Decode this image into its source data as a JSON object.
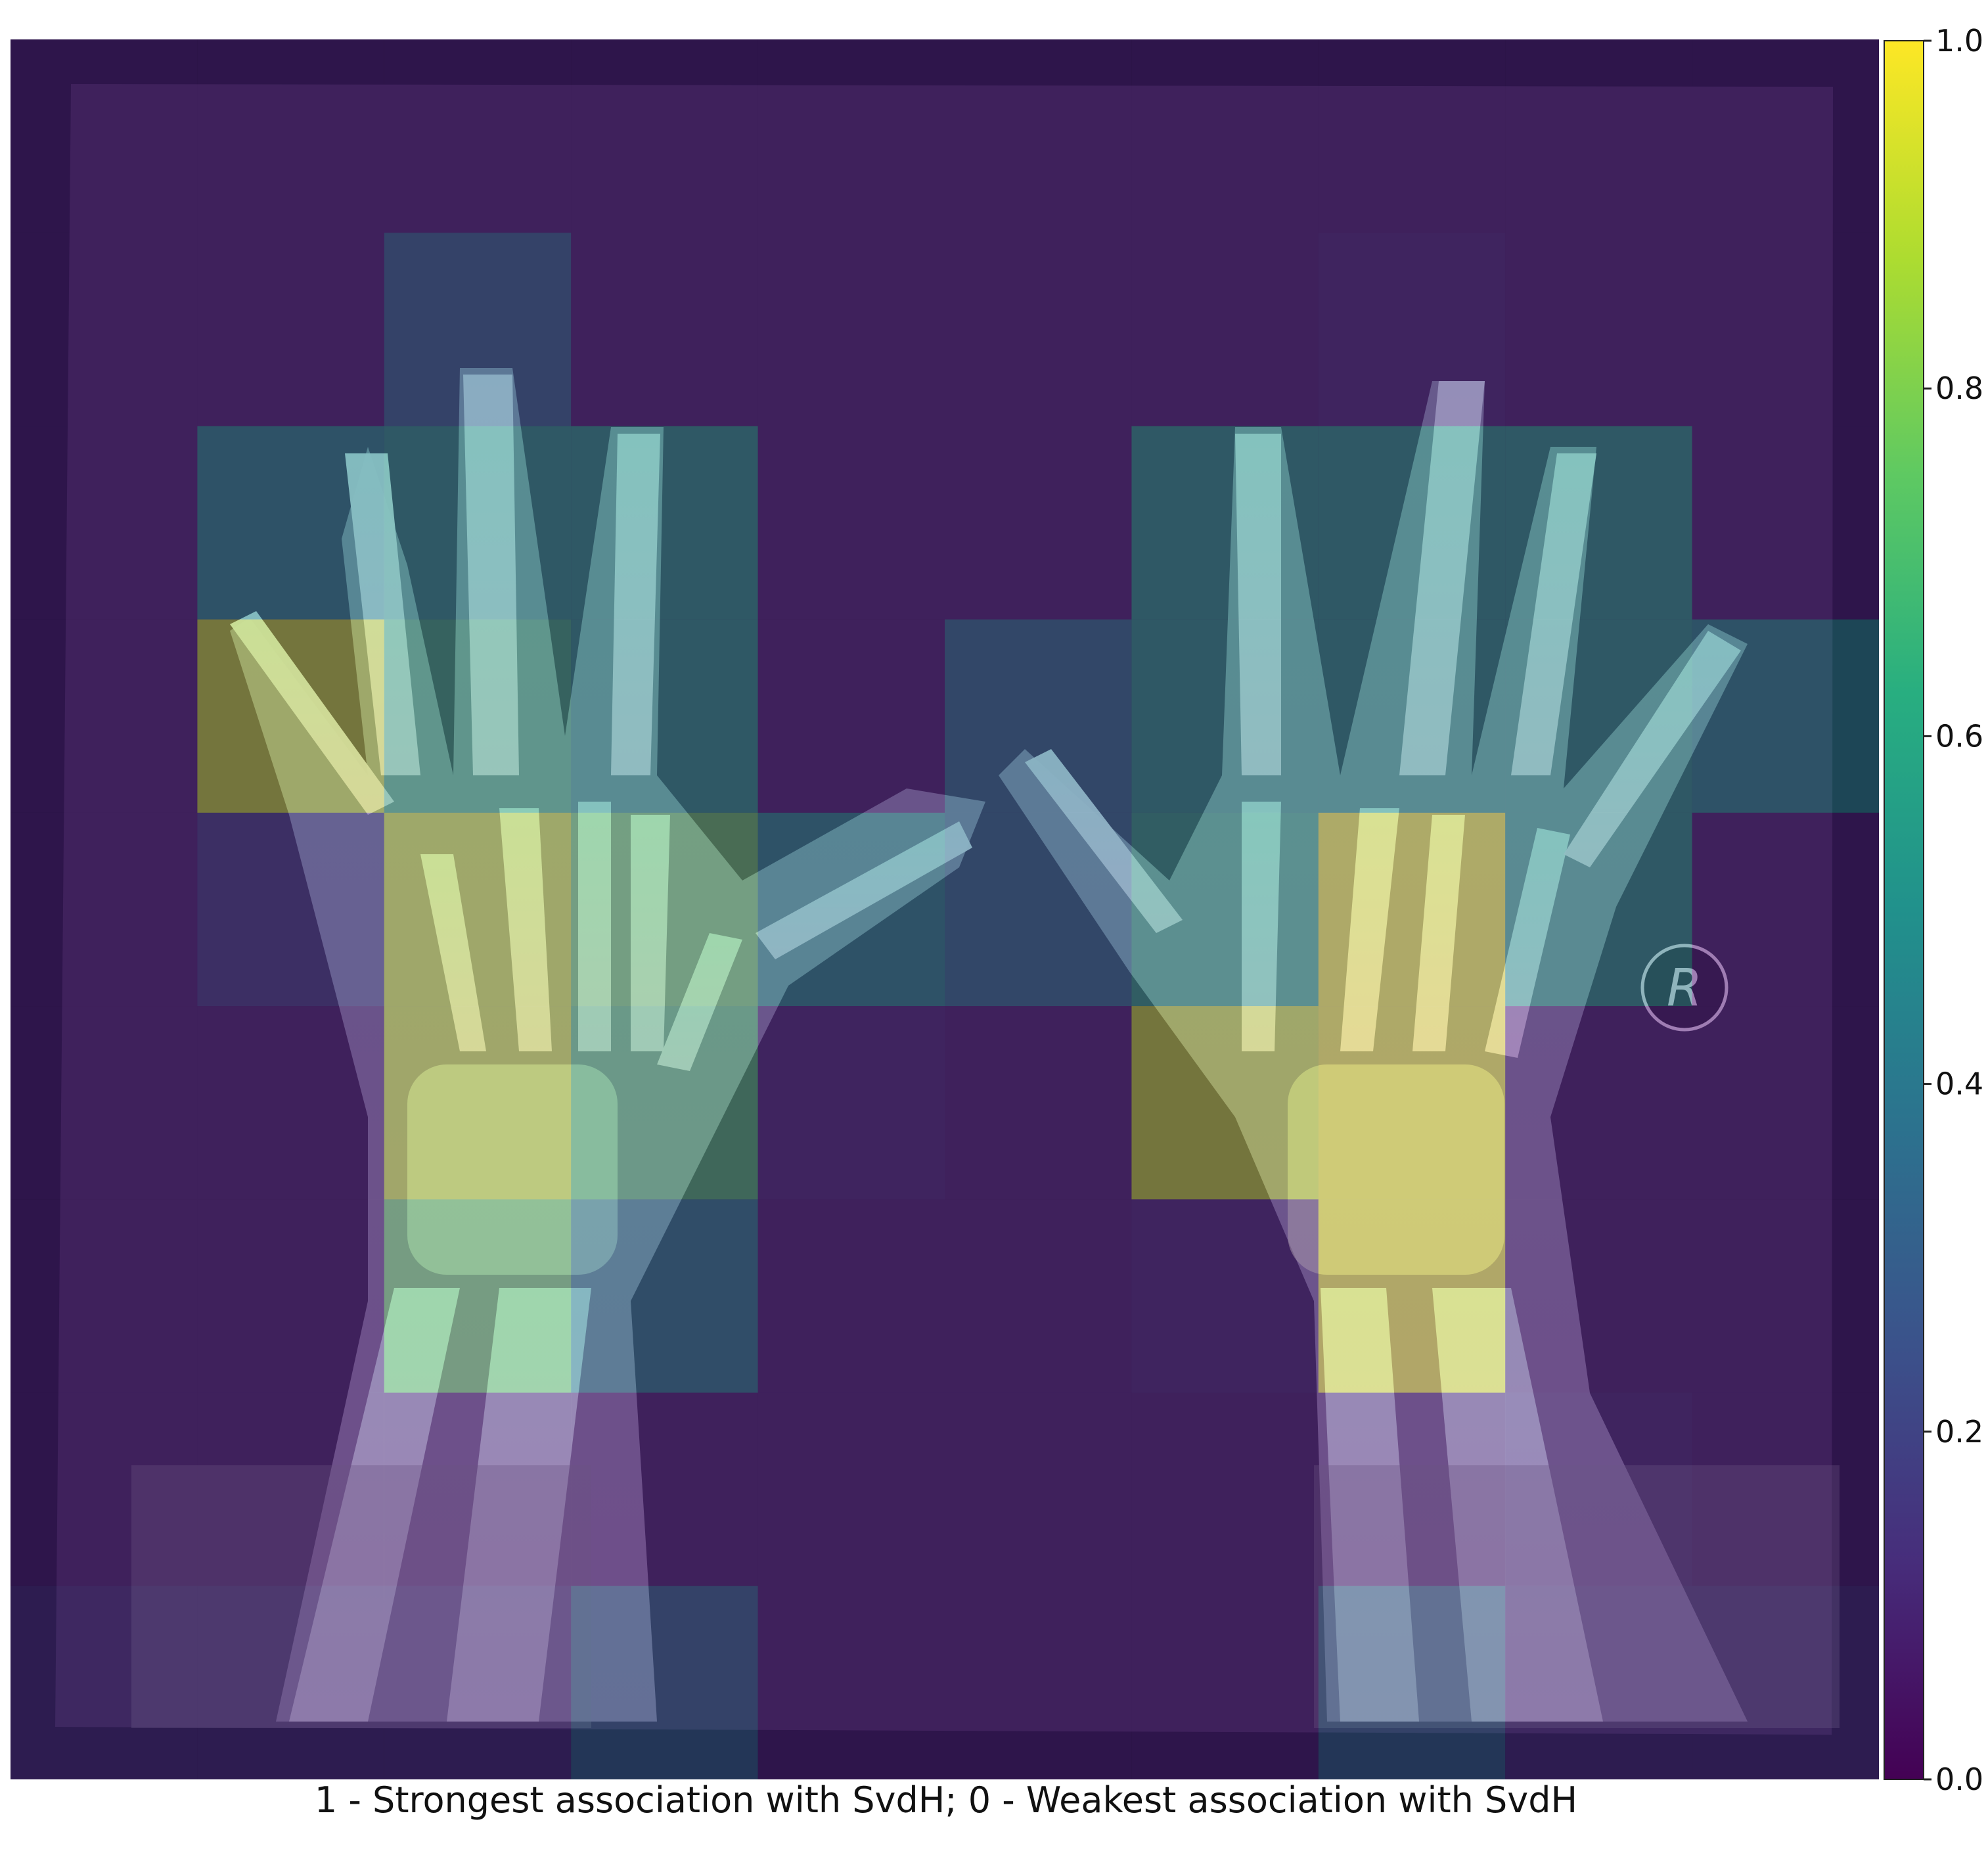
{
  "figure": {
    "caption": "1 - Strongest association with SvdH; 0 - Weakest association with SvdH",
    "marker_label": "R"
  },
  "colorbar": {
    "colormap": "viridis",
    "range": [
      0.0,
      1.0
    ],
    "ticks": [
      "0.0",
      "0.2",
      "0.4",
      "0.6",
      "0.8",
      "1.0"
    ]
  },
  "chart_data": {
    "type": "heatmap",
    "description_source": "saliency grid overlaid on bilateral hand radiograph",
    "grid": {
      "rows": 9,
      "cols": 10
    },
    "values": [
      [
        0.1,
        0.1,
        0.1,
        0.1,
        0.1,
        0.1,
        0.1,
        0.1,
        0.1,
        0.1
      ],
      [
        0.1,
        0.1,
        0.35,
        0.1,
        0.1,
        0.1,
        0.1,
        0.12,
        0.1,
        0.1
      ],
      [
        0.1,
        0.5,
        0.55,
        0.55,
        0.1,
        0.1,
        0.55,
        0.55,
        0.55,
        0.1
      ],
      [
        0.1,
        0.9,
        0.65,
        0.55,
        0.1,
        0.4,
        0.55,
        0.55,
        0.55,
        0.5
      ],
      [
        0.1,
        0.2,
        0.9,
        0.75,
        0.5,
        0.4,
        0.6,
        0.95,
        0.55,
        0.1
      ],
      [
        0.1,
        0.1,
        0.9,
        0.7,
        0.12,
        0.1,
        0.9,
        0.95,
        0.1,
        0.1
      ],
      [
        0.1,
        0.1,
        0.75,
        0.45,
        0.1,
        0.1,
        0.12,
        0.95,
        0.1,
        0.1
      ],
      [
        0.1,
        0.1,
        0.1,
        0.1,
        0.1,
        0.1,
        0.1,
        0.1,
        0.12,
        0.1
      ],
      [
        0.15,
        0.15,
        0.15,
        0.35,
        0.1,
        0.1,
        0.1,
        0.35,
        0.15,
        0.15
      ]
    ]
  }
}
